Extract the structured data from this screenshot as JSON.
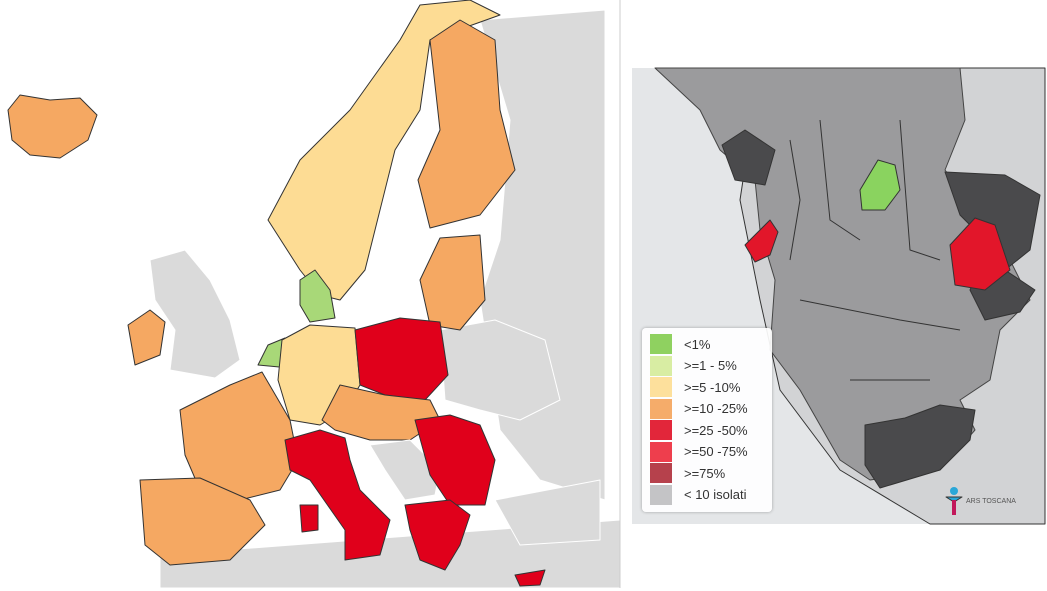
{
  "legend": {
    "items": [
      {
        "label": "<1%",
        "color": "#8fd160"
      },
      {
        "label": ">=1 - 5%",
        "color": "#d8eda3"
      },
      {
        "label": ">=5 -10%",
        "color": "#fde09c"
      },
      {
        "label": ">=10 -25%",
        "color": "#f5ac6a"
      },
      {
        "label": ">=25 -50%",
        "color": "#e2263a"
      },
      {
        "label": ">=50 -75%",
        "color": "#ee3e4d"
      },
      {
        "label": ">=75%",
        "color": "#b6414c"
      },
      {
        "label": "< 10 isolati",
        "color": "#c4c4c6"
      }
    ]
  },
  "logo": {
    "text": "ARS TOSCANA"
  }
}
